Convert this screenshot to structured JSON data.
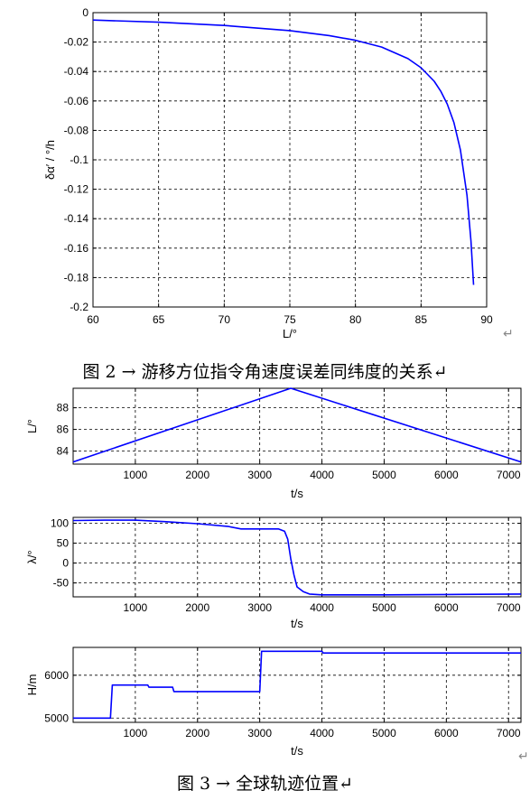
{
  "captions": {
    "fig2": "图 2 → 游移方位指令角速度误差同纬度的关系↵",
    "fig3": "图 3 → 全球轨迹位置↵",
    "para_mark": "↵"
  },
  "colors": {
    "line": "#0000ff",
    "grid": "#000000",
    "axis": "#000000"
  },
  "chart_data": [
    {
      "type": "line",
      "title": "",
      "xlabel": "L/°",
      "ylabel": "δα′ / °/h",
      "xlim": [
        60,
        90
      ],
      "ylim": [
        -0.2,
        0
      ],
      "xticks": [
        60,
        65,
        70,
        75,
        80,
        85,
        90
      ],
      "yticks": [
        0,
        -0.02,
        -0.04,
        -0.06,
        -0.08,
        -0.1,
        -0.12,
        -0.14,
        -0.16,
        -0.18,
        -0.2
      ],
      "xtick_labels": [
        "60",
        "65",
        "70",
        "75",
        "80",
        "85",
        "90"
      ],
      "ytick_labels": [
        "0",
        "-0.02",
        "-0.04",
        "-0.06",
        "-0.08",
        "-0.1",
        "-0.12",
        "-0.14",
        "-0.16",
        "-0.18",
        "-0.2"
      ],
      "grid": true,
      "series": [
        {
          "x": [
            60,
            65,
            70,
            75,
            78,
            80,
            82,
            84,
            85,
            86,
            86.5,
            87,
            87.5,
            88,
            88.5,
            88.8,
            89
          ],
          "y": [
            -0.005,
            -0.0065,
            -0.0087,
            -0.0122,
            -0.0156,
            -0.0188,
            -0.0234,
            -0.0312,
            -0.0374,
            -0.0466,
            -0.0533,
            -0.0622,
            -0.0746,
            -0.0932,
            -0.124,
            -0.155,
            -0.185
          ]
        }
      ]
    },
    {
      "type": "line",
      "xlabel": "t/s",
      "ylabel": "L/°",
      "xlim": [
        0,
        7200
      ],
      "ylim": [
        82.8,
        89.8
      ],
      "xticks": [
        1000,
        2000,
        3000,
        4000,
        5000,
        6000,
        7000
      ],
      "yticks": [
        84,
        86,
        88
      ],
      "xtick_labels": [
        "1000",
        "2000",
        "3000",
        "4000",
        "5000",
        "6000",
        "7000"
      ],
      "ytick_labels": [
        "84",
        "86",
        "88"
      ],
      "grid": true,
      "series": [
        {
          "x": [
            0,
            3500,
            7200
          ],
          "y": [
            83,
            89.8,
            83
          ]
        }
      ]
    },
    {
      "type": "line",
      "xlabel": "t/s",
      "ylabel": "λ/°",
      "xlim": [
        0,
        7200
      ],
      "ylim": [
        -85,
        115
      ],
      "xticks": [
        1000,
        2000,
        3000,
        4000,
        5000,
        6000,
        7000
      ],
      "yticks": [
        100,
        50,
        0,
        -50
      ],
      "xtick_labels": [
        "1000",
        "2000",
        "3000",
        "4000",
        "5000",
        "6000",
        "7000"
      ],
      "ytick_labels": [
        "100",
        "50",
        "0",
        "-50"
      ],
      "grid": true,
      "series": [
        {
          "x": [
            0,
            500,
            1000,
            1500,
            2000,
            2500,
            2700,
            3000,
            3300,
            3400,
            3450,
            3500,
            3550,
            3600,
            3700,
            3800,
            4000,
            5000,
            6000,
            7200
          ],
          "y": [
            107,
            108,
            108,
            104,
            99,
            92,
            86,
            86,
            86,
            80,
            60,
            10,
            -30,
            -60,
            -72,
            -78,
            -80,
            -80,
            -79,
            -78
          ]
        }
      ]
    },
    {
      "type": "line",
      "xlabel": "t/s",
      "ylabel": "H/m",
      "xlim": [
        0,
        7200
      ],
      "ylim": [
        4900,
        6650
      ],
      "xticks": [
        1000,
        2000,
        3000,
        4000,
        5000,
        6000,
        7000
      ],
      "yticks": [
        6000,
        5000
      ],
      "xtick_labels": [
        "1000",
        "2000",
        "3000",
        "4000",
        "5000",
        "6000",
        "7000"
      ],
      "ytick_labels": [
        "6000",
        "5000"
      ],
      "grid": true,
      "series": [
        {
          "x": [
            0,
            600,
            630,
            1200,
            1220,
            1600,
            1620,
            3000,
            3030,
            4000,
            4020,
            7200
          ],
          "y": [
            5000,
            5000,
            5770,
            5770,
            5720,
            5720,
            5620,
            5620,
            6560,
            6560,
            6520,
            6520
          ]
        }
      ]
    }
  ]
}
